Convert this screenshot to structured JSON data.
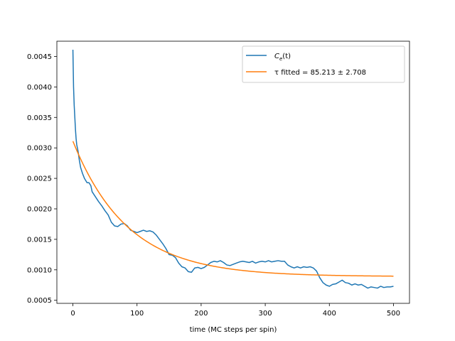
{
  "chart_data": {
    "type": "line",
    "title": "",
    "xlabel": "time (MC steps per spin)",
    "ylabel": "",
    "xlim": [
      -25,
      525
    ],
    "ylim": [
      0.00045,
      0.00475
    ],
    "grid": false,
    "legend_position": "top-right",
    "x_ticks": [
      0,
      100,
      200,
      300,
      400,
      500
    ],
    "x_tick_labels": [
      "0",
      "100",
      "200",
      "300",
      "400",
      "500"
    ],
    "y_ticks": [
      0.0005,
      0.001,
      0.0015,
      0.002,
      0.0025,
      0.003,
      0.0035,
      0.004,
      0.0045
    ],
    "y_tick_labels": [
      "0.0005",
      "0.0010",
      "0.0015",
      "0.0020",
      "0.0025",
      "0.0030",
      "0.0035",
      "0.0040",
      "0.0045"
    ],
    "series": [
      {
        "name": "C_e(t)",
        "legend_main": "C",
        "legend_sub": "e",
        "legend_tail": "(t)",
        "color": "#1f77b4",
        "points": [
          [
            0,
            0.00461
          ],
          [
            1,
            0.004
          ],
          [
            2,
            0.0037
          ],
          [
            3,
            0.0035
          ],
          [
            4,
            0.0033
          ],
          [
            5,
            0.00315
          ],
          [
            6,
            0.00305
          ],
          [
            8,
            0.00295
          ],
          [
            10,
            0.0028
          ],
          [
            12,
            0.00268
          ],
          [
            15,
            0.00258
          ],
          [
            18,
            0.0025
          ],
          [
            22,
            0.00243
          ],
          [
            25,
            0.00243
          ],
          [
            28,
            0.00238
          ],
          [
            30,
            0.00228
          ],
          [
            35,
            0.0022
          ],
          [
            40,
            0.00212
          ],
          [
            45,
            0.00205
          ],
          [
            50,
            0.00197
          ],
          [
            55,
            0.0019
          ],
          [
            60,
            0.00178
          ],
          [
            65,
            0.00172
          ],
          [
            70,
            0.00171
          ],
          [
            75,
            0.00175
          ],
          [
            80,
            0.00176
          ],
          [
            85,
            0.00172
          ],
          [
            90,
            0.00165
          ],
          [
            95,
            0.00163
          ],
          [
            100,
            0.00161
          ],
          [
            105,
            0.00163
          ],
          [
            110,
            0.00165
          ],
          [
            115,
            0.00163
          ],
          [
            120,
            0.00164
          ],
          [
            125,
            0.00162
          ],
          [
            130,
            0.00157
          ],
          [
            135,
            0.0015
          ],
          [
            140,
            0.00143
          ],
          [
            145,
            0.00135
          ],
          [
            150,
            0.00125
          ],
          [
            155,
            0.00124
          ],
          [
            160,
            0.0012
          ],
          [
            165,
            0.00111
          ],
          [
            170,
            0.00105
          ],
          [
            175,
            0.00103
          ],
          [
            180,
            0.00097
          ],
          [
            185,
            0.00096
          ],
          [
            190,
            0.00103
          ],
          [
            195,
            0.00104
          ],
          [
            200,
            0.00102
          ],
          [
            205,
            0.00104
          ],
          [
            210,
            0.00108
          ],
          [
            215,
            0.00112
          ],
          [
            220,
            0.00114
          ],
          [
            225,
            0.00113
          ],
          [
            230,
            0.00115
          ],
          [
            235,
            0.00112
          ],
          [
            240,
            0.00108
          ],
          [
            245,
            0.00107
          ],
          [
            250,
            0.00109
          ],
          [
            255,
            0.00111
          ],
          [
            260,
            0.00113
          ],
          [
            265,
            0.00114
          ],
          [
            270,
            0.00113
          ],
          [
            275,
            0.00112
          ],
          [
            280,
            0.00114
          ],
          [
            285,
            0.00111
          ],
          [
            290,
            0.00113
          ],
          [
            295,
            0.00114
          ],
          [
            300,
            0.00113
          ],
          [
            305,
            0.00115
          ],
          [
            310,
            0.00113
          ],
          [
            315,
            0.00114
          ],
          [
            320,
            0.00115
          ],
          [
            325,
            0.00114
          ],
          [
            330,
            0.00114
          ],
          [
            335,
            0.00108
          ],
          [
            340,
            0.00105
          ],
          [
            345,
            0.00103
          ],
          [
            350,
            0.00105
          ],
          [
            355,
            0.00103
          ],
          [
            360,
            0.00105
          ],
          [
            365,
            0.00104
          ],
          [
            370,
            0.00105
          ],
          [
            375,
            0.00103
          ],
          [
            380,
            0.00098
          ],
          [
            385,
            0.00087
          ],
          [
            390,
            0.00079
          ],
          [
            395,
            0.00075
          ],
          [
            400,
            0.00073
          ],
          [
            405,
            0.00076
          ],
          [
            410,
            0.00077
          ],
          [
            415,
            0.0008
          ],
          [
            420,
            0.00083
          ],
          [
            425,
            0.00079
          ],
          [
            430,
            0.00078
          ],
          [
            435,
            0.00075
          ],
          [
            440,
            0.00077
          ],
          [
            445,
            0.00075
          ],
          [
            450,
            0.00076
          ],
          [
            455,
            0.00073
          ],
          [
            460,
            0.0007
          ],
          [
            465,
            0.00072
          ],
          [
            470,
            0.00071
          ],
          [
            475,
            0.0007
          ],
          [
            480,
            0.00073
          ],
          [
            485,
            0.00071
          ],
          [
            490,
            0.00072
          ],
          [
            495,
            0.00072
          ],
          [
            500,
            0.00073
          ]
        ]
      },
      {
        "name": "tau fitted",
        "legend_text": "τ fitted = 85.213 ± 2.708",
        "color": "#ff7f0e",
        "fit": {
          "a": 0.00222,
          "tau": 85.213,
          "c": 0.00089,
          "x_start": 0,
          "x_end": 500
        }
      }
    ]
  }
}
